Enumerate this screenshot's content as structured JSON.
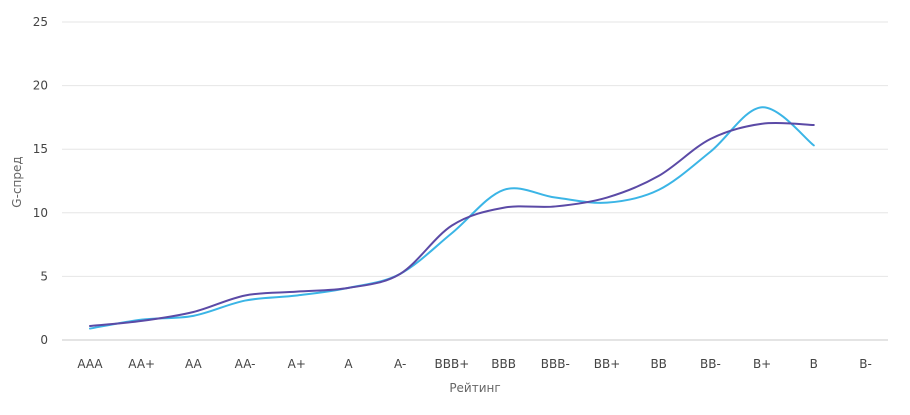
{
  "chart_data": {
    "type": "line",
    "xlabel": "Рейтинг",
    "ylabel": "G-спред",
    "ylim": [
      0,
      25
    ],
    "yticks": [
      0,
      5,
      10,
      15,
      20,
      25
    ],
    "grid": true,
    "categories": [
      "AAA",
      "AA+",
      "AA",
      "AA-",
      "A+",
      "A",
      "A-",
      "BBB+",
      "BBB",
      "BBB-",
      "BB+",
      "BB",
      "BB-",
      "B+",
      "B",
      "B-"
    ],
    "series": [
      {
        "color": "#3bb5e6",
        "values": [
          0.9,
          1.6,
          1.9,
          3.1,
          3.5,
          4.1,
          5.2,
          8.4,
          11.8,
          11.2,
          10.8,
          11.8,
          14.8,
          18.3,
          15.3,
          null
        ]
      },
      {
        "color": "#5b4aa6",
        "values": [
          1.1,
          1.5,
          2.2,
          3.5,
          3.8,
          4.1,
          5.2,
          9.0,
          10.4,
          10.5,
          11.2,
          12.9,
          15.8,
          17.0,
          16.9,
          null
        ]
      }
    ]
  }
}
